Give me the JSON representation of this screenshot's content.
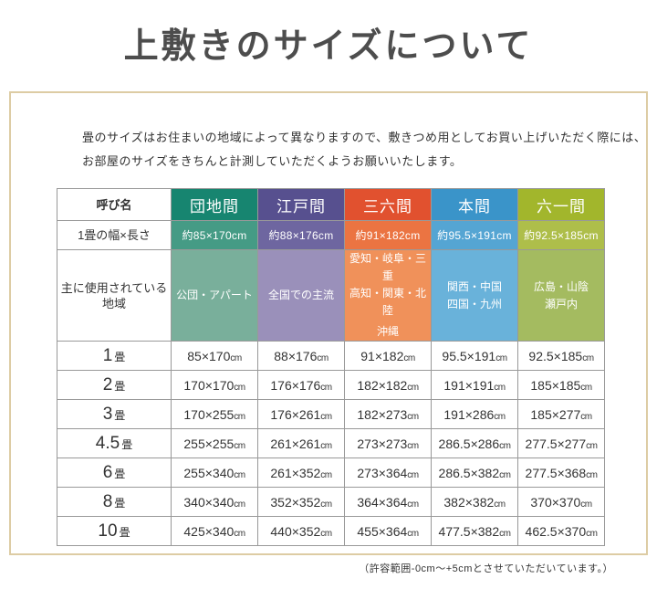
{
  "page_title": "上敷きのサイズについて",
  "intro": {
    "line1": "畳のサイズはお住まいの地域によって異なりますので、敷きつめ用としてお買い上げいただく際には、",
    "line2": "お部屋のサイズをきちんと計測していただくようお願いいたします。"
  },
  "table": {
    "corner_label": "呼び名",
    "size_row_label": "1畳の幅×長さ",
    "region_row_label": "主に使用されている地域",
    "unit": "cm",
    "columns": [
      {
        "name": "団地間",
        "size": "約85×170cm",
        "region_lines": [
          "公団・アパート"
        ],
        "colors": {
          "header": "#178570",
          "size": "#459b85",
          "region": "#79af9b"
        }
      },
      {
        "name": "江戸間",
        "size": "約88×176cm",
        "region_lines": [
          "全国での主流"
        ],
        "colors": {
          "header": "#57508f",
          "size": "#6e66a0",
          "region": "#9a90ba"
        }
      },
      {
        "name": "三六間",
        "size": "約91×182cm",
        "region_lines": [
          "愛知・岐阜・三重",
          "高知・関東・北陸",
          "沖縄"
        ],
        "colors": {
          "header": "#e1512f",
          "size": "#eb7442",
          "region": "#f0915a"
        }
      },
      {
        "name": "本間",
        "size": "約95.5×191cm",
        "region_lines": [
          "関西・中国",
          "四国・九州"
        ],
        "colors": {
          "header": "#3a94c9",
          "size": "#55a5d3",
          "region": "#69b2da"
        }
      },
      {
        "name": "六一間",
        "size": "約92.5×185cm",
        "region_lines": [
          "広島・山陰",
          "瀬戸内"
        ],
        "colors": {
          "header": "#a2b62c",
          "size": "#aebe4a",
          "region": "#a4bb60"
        }
      }
    ],
    "rows": [
      {
        "label_num": "1",
        "label_suffix": "畳",
        "values": [
          "85×170",
          "88×176",
          "91×182",
          "95.5×191",
          "92.5×185"
        ]
      },
      {
        "label_num": "2",
        "label_suffix": "畳",
        "values": [
          "170×170",
          "176×176",
          "182×182",
          "191×191",
          "185×185"
        ]
      },
      {
        "label_num": "3",
        "label_suffix": "畳",
        "values": [
          "170×255",
          "176×261",
          "182×273",
          "191×286",
          "185×277"
        ]
      },
      {
        "label_num": "4.5",
        "label_suffix": "畳",
        "values": [
          "255×255",
          "261×261",
          "273×273",
          "286.5×286",
          "277.5×277"
        ]
      },
      {
        "label_num": "6",
        "label_suffix": "畳",
        "values": [
          "255×340",
          "261×352",
          "273×364",
          "286.5×382",
          "277.5×368"
        ]
      },
      {
        "label_num": "8",
        "label_suffix": "畳",
        "values": [
          "340×340",
          "352×352",
          "364×364",
          "382×382",
          "370×370"
        ]
      },
      {
        "label_num": "10",
        "label_suffix": "畳",
        "values": [
          "425×340",
          "440×352",
          "455×364",
          "477.5×382",
          "462.5×370"
        ]
      }
    ]
  },
  "note": "（許容範囲-0cm〜+5cmとさせていただいています。）",
  "colors": {
    "box_border": "#ddcca4",
    "table_border": "#999999",
    "title_text": "#4d4d4d",
    "body_text": "#333333"
  }
}
